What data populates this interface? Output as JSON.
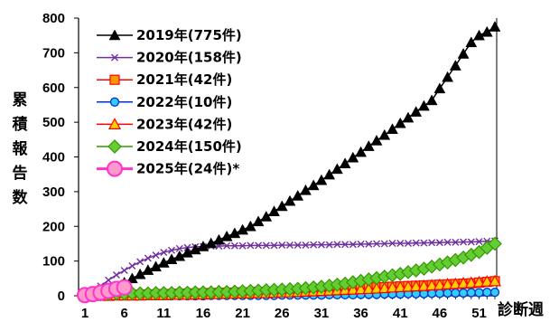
{
  "chart_data": {
    "type": "line",
    "xlabel": "診断週",
    "ylabel": "累積報告数",
    "ylim": [
      0,
      800
    ],
    "yticks": [
      0,
      100,
      200,
      300,
      400,
      500,
      600,
      700,
      800
    ],
    "xlim": [
      1,
      53
    ],
    "xticks": [
      1,
      6,
      11,
      16,
      21,
      26,
      31,
      36,
      41,
      46,
      51
    ],
    "grid": false,
    "legend_position": "top-left",
    "series": [
      {
        "name": "2019年(775件)",
        "color": "#000000",
        "marker": "triangle",
        "x_start": 1,
        "values": [
          2,
          5,
          9,
          16,
          25,
          38,
          50,
          62,
          74,
          84,
          95,
          105,
          114,
          124,
          133,
          142,
          151,
          161,
          171,
          180,
          190,
          200,
          214,
          228,
          243,
          258,
          273,
          288,
          304,
          318,
          333,
          349,
          365,
          381,
          398,
          414,
          431,
          447,
          463,
          480,
          497,
          513,
          530,
          547,
          563,
          597,
          630,
          663,
          697,
          730,
          750,
          760,
          775
        ]
      },
      {
        "name": "2020年(158件)",
        "color": "#7030A0",
        "marker": "x",
        "x_start": 1,
        "values": [
          3,
          12,
          28,
          45,
          60,
          73,
          86,
          98,
          108,
          117,
          125,
          131,
          136,
          139,
          141,
          142,
          143,
          143,
          144,
          144,
          144,
          145,
          145,
          145,
          145,
          146,
          146,
          146,
          146,
          147,
          147,
          147,
          148,
          148,
          148,
          149,
          149,
          150,
          150,
          151,
          151,
          151,
          152,
          152,
          153,
          153,
          154,
          154,
          155,
          155,
          156,
          157,
          158
        ]
      },
      {
        "name": "2021年(42件)",
        "color": "#FF0000",
        "marker": "square",
        "x_start": 1,
        "values": [
          1,
          1,
          2,
          2,
          2,
          3,
          3,
          3,
          4,
          4,
          5,
          5,
          6,
          6,
          7,
          7,
          8,
          8,
          9,
          9,
          10,
          10,
          11,
          11,
          12,
          12,
          13,
          14,
          15,
          16,
          17,
          18,
          19,
          20,
          21,
          22,
          23,
          24,
          25,
          26,
          27,
          28,
          29,
          30,
          31,
          32,
          33,
          34,
          35,
          36,
          38,
          40,
          42
        ]
      },
      {
        "name": "2022年(10件)",
        "color": "#0033CC",
        "marker": "circle",
        "x_start": 1,
        "values": [
          0,
          0,
          0,
          0,
          0,
          0,
          0,
          0,
          0,
          0,
          0,
          0,
          0,
          0,
          0,
          0,
          1,
          1,
          1,
          1,
          1,
          1,
          1,
          1,
          1,
          2,
          2,
          2,
          2,
          2,
          2,
          3,
          3,
          3,
          3,
          4,
          4,
          4,
          5,
          5,
          5,
          6,
          6,
          6,
          7,
          7,
          8,
          8,
          8,
          9,
          9,
          10,
          10
        ]
      },
      {
        "name": "2023年(42件)",
        "color": "#FF0000",
        "marker": "triangle-yellow",
        "x_start": 1,
        "values": [
          0,
          0,
          0,
          0,
          1,
          1,
          1,
          1,
          2,
          2,
          2,
          3,
          3,
          3,
          4,
          4,
          5,
          5,
          6,
          6,
          7,
          7,
          8,
          8,
          9,
          10,
          10,
          11,
          12,
          13,
          14,
          15,
          16,
          17,
          18,
          19,
          20,
          21,
          22,
          24,
          25,
          26,
          27,
          28,
          30,
          31,
          33,
          34,
          36,
          37,
          39,
          41,
          42
        ]
      },
      {
        "name": "2024年(150件)",
        "color": "#339900",
        "marker": "diamond",
        "x_start": 1,
        "values": [
          2,
          3,
          4,
          5,
          6,
          6,
          7,
          7,
          7,
          8,
          8,
          8,
          9,
          9,
          10,
          10,
          10,
          11,
          11,
          12,
          13,
          14,
          15,
          16,
          17,
          18,
          19,
          20,
          22,
          24,
          26,
          29,
          32,
          35,
          39,
          43,
          47,
          51,
          55,
          59,
          63,
          68,
          73,
          78,
          84,
          90,
          96,
          103,
          110,
          118,
          126,
          138,
          150
        ]
      },
      {
        "name": "2025年(24件)*",
        "color": "#FF33CC",
        "marker": "circle-big",
        "x_start": 1,
        "values": [
          2,
          5,
          9,
          14,
          20,
          24
        ]
      }
    ]
  }
}
